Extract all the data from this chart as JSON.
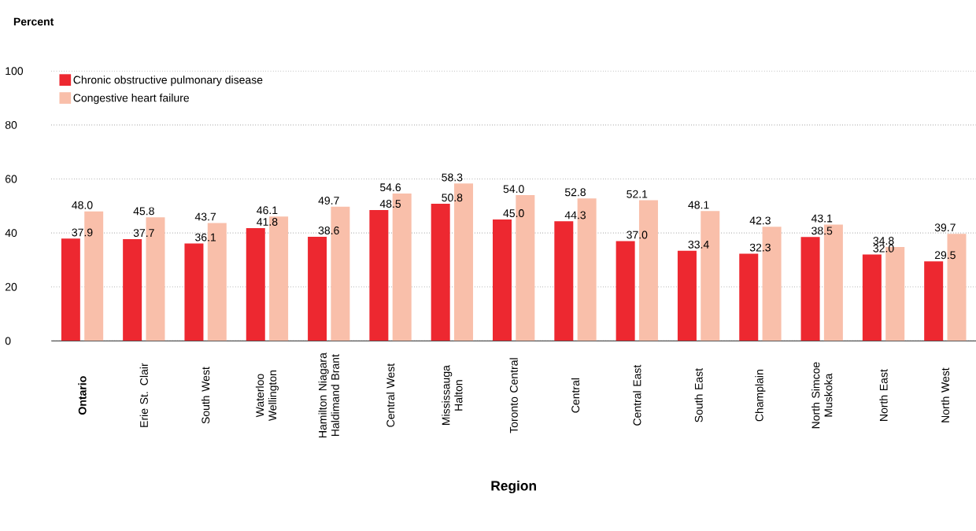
{
  "chart_data": {
    "type": "bar",
    "ylabel": "Percent",
    "xlabel": "Region",
    "categories": [
      "**Ontario**",
      "Erie St. Clair",
      "South West",
      "Waterloo Wellington",
      "Hamilton Niagara Haldimand Brant",
      "Central West",
      "Mississauga Halton",
      "Toronto Central",
      "Central",
      "Central East",
      "South East",
      "Champlain",
      "North Simcoe Muskoka",
      "North East",
      "North West"
    ],
    "series": [
      {
        "name": "Chronic obstructive pulmonary disease",
        "color": "#ed2830",
        "values": [
          37.9,
          37.7,
          36.1,
          41.8,
          38.6,
          48.5,
          50.8,
          45.0,
          44.3,
          37.0,
          33.4,
          32.3,
          38.5,
          32.0,
          29.5
        ],
        "value_labels": [
          "37.9",
          "37.7",
          "36.1",
          "41.8",
          "38.6",
          "48.5",
          "50.8",
          "45.0",
          "44.3",
          "37.0",
          "33.4",
          "32.3",
          "38.5",
          "32.0",
          "29.5"
        ]
      },
      {
        "name": "Congestive heart failure",
        "color": "#f9bfaa",
        "values": [
          48.0,
          45.8,
          43.7,
          46.1,
          49.7,
          54.6,
          58.3,
          54.0,
          52.8,
          52.1,
          48.1,
          42.3,
          43.1,
          34.8,
          39.7
        ],
        "value_labels": [
          "48.0",
          "45.8",
          "43.7",
          "46.1",
          "49.7",
          "54.6",
          "58.3",
          "54.0",
          "52.8",
          "52.1",
          "48.1",
          "42.3",
          "43.1",
          "34.8",
          "39.7"
        ]
      }
    ],
    "ylim": [
      0,
      100
    ],
    "yticks": [
      0,
      20,
      40,
      60,
      80,
      100
    ],
    "grid": "y",
    "legend": "top left"
  }
}
